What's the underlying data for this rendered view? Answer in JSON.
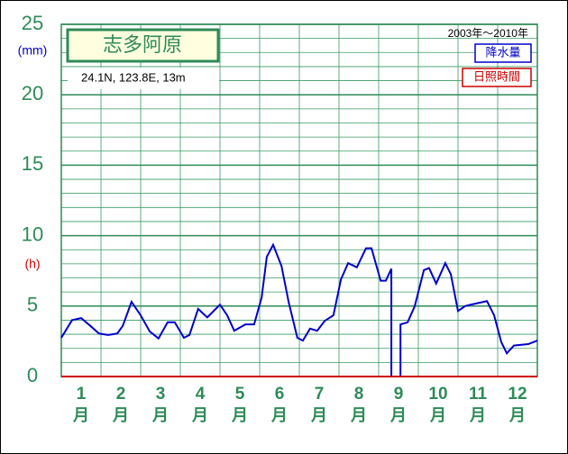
{
  "chart_data": {
    "type": "line",
    "title": "志多阿原",
    "subtitle": "24.1N,  123.8E,  13m",
    "period": "2003年〜2010年",
    "y_unit_precip": "(mm)",
    "y_unit_sun": "(h)",
    "categories": [
      "1",
      "2",
      "3",
      "4",
      "5",
      "6",
      "7",
      "8",
      "9",
      "10",
      "11",
      "12"
    ],
    "month_unit": "月",
    "xlim": [
      0,
      12
    ],
    "ylim": [
      0,
      25
    ],
    "yticks": [
      0,
      5,
      10,
      15,
      20,
      25
    ],
    "grid": true,
    "series": [
      {
        "name": "降水量",
        "color": "#0000cc",
        "x": [
          0,
          0.27,
          0.5,
          0.73,
          0.95,
          1.18,
          1.41,
          1.55,
          1.77,
          2.0,
          2.23,
          2.45,
          2.68,
          2.86,
          3.09,
          3.23,
          3.45,
          3.68,
          4.0,
          4.18,
          4.36,
          4.64,
          4.86,
          5.05,
          5.18,
          5.34,
          5.55,
          5.73,
          5.95,
          6.09,
          6.27,
          6.45,
          6.64,
          6.86,
          7.05,
          7.23,
          7.45,
          7.68,
          7.82,
          8.05,
          8.18,
          8.32,
          8.32,
          8.55,
          8.55,
          8.73,
          8.91,
          9.14,
          9.27,
          9.45,
          9.68,
          9.82,
          10.0,
          10.18,
          10.32,
          10.73,
          10.91,
          11.09,
          11.23,
          11.41,
          11.77,
          12.0
        ],
        "values": [
          2.75,
          4.0,
          4.15,
          3.6,
          3.05,
          2.95,
          3.05,
          3.6,
          5.3,
          4.35,
          3.2,
          2.7,
          3.85,
          3.85,
          2.75,
          2.95,
          4.8,
          4.2,
          5.1,
          4.35,
          3.25,
          3.7,
          3.7,
          5.6,
          8.5,
          9.35,
          7.85,
          5.3,
          2.75,
          2.55,
          3.4,
          3.25,
          3.95,
          4.35,
          6.9,
          8.05,
          7.75,
          9.1,
          9.1,
          6.8,
          6.8,
          7.65,
          0,
          0,
          3.7,
          3.85,
          5.0,
          7.55,
          7.7,
          6.6,
          8.05,
          7.25,
          4.65,
          5.0,
          5.1,
          5.35,
          4.35,
          2.45,
          1.65,
          2.2,
          2.3,
          2.55
        ]
      },
      {
        "name": "日照時間",
        "color": "#cc0000",
        "x": [
          0,
          12
        ],
        "values": [
          0,
          0
        ]
      }
    ]
  }
}
